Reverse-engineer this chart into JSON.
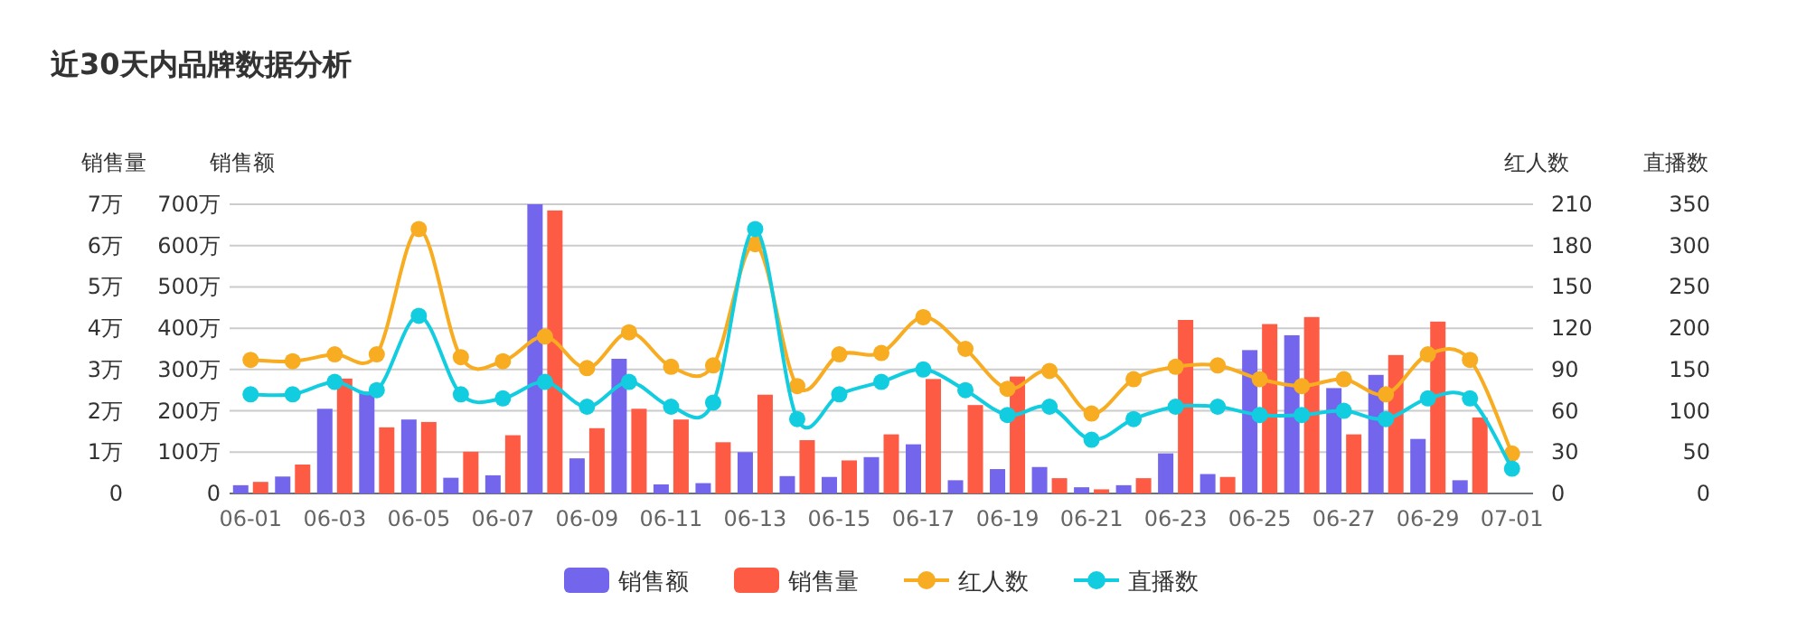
{
  "chart_data": [
    {
      "type": "bar",
      "title": "近30天内品牌数据分析",
      "categories": [
        "06-01",
        null,
        "06-03",
        null,
        "06-05",
        null,
        "06-07",
        null,
        "06-09",
        null,
        "06-11",
        null,
        "06-13",
        null,
        "06-15",
        null,
        "06-17",
        null,
        "06-19",
        null,
        "06-21",
        null,
        "06-23",
        null,
        "06-25",
        null,
        "06-27",
        null,
        "06-29",
        null,
        "07-01"
      ],
      "ylabel": "销售额",
      "y2label": "销售量",
      "ylim": [
        0,
        700
      ],
      "yticks": [
        0,
        {
          "value": 100,
          "label": "100万"
        },
        {
          "value": 200,
          "label": "200万"
        },
        {
          "value": 300,
          "label": "300万"
        },
        {
          "value": 400,
          "label": "400万"
        },
        {
          "value": 500,
          "label": "500万"
        },
        {
          "value": 600,
          "label": "600万"
        },
        {
          "value": 700,
          "label": "700万"
        }
      ],
      "y2lim": [
        0,
        7
      ],
      "y2ticks": [
        0,
        {
          "value": 1,
          "label": "1万"
        },
        {
          "value": 2,
          "label": "2万"
        },
        {
          "value": 3,
          "label": "3万"
        },
        {
          "value": 4,
          "label": "4万"
        },
        {
          "value": 5,
          "label": "5万"
        },
        {
          "value": 6,
          "label": "6万"
        },
        {
          "value": 7,
          "label": "7万"
        }
      ],
      "grid": "y",
      "legend": "bottom",
      "series": [
        {
          "name": "销售额",
          "color": "#7366ec",
          "values": [
            20,
            41,
            205,
            246,
            179,
            38,
            44,
            700,
            85,
            326,
            22,
            25,
            100,
            42,
            40,
            88,
            119,
            32,
            59,
            64,
            15,
            20,
            97,
            47,
            347,
            383,
            255,
            287,
            132,
            32,
            null
          ]
        },
        {
          "name": "销售量",
          "axis": "y2",
          "color": "#fe5b45",
          "values": [
            0.28,
            0.7,
            2.78,
            1.6,
            1.73,
            1.01,
            1.41,
            6.85,
            1.58,
            2.05,
            1.79,
            1.24,
            2.39,
            1.29,
            0.8,
            1.43,
            2.77,
            2.14,
            2.83,
            0.37,
            0.1,
            0.37,
            4.2,
            0.4,
            4.1,
            4.27,
            1.43,
            3.35,
            4.16,
            1.84,
            null
          ]
        }
      ]
    },
    {
      "type": "line",
      "categories": [
        null,
        null,
        null,
        null,
        null,
        null,
        null,
        null,
        null,
        null,
        null,
        null,
        null,
        null,
        null,
        null,
        null,
        null,
        null,
        null,
        null,
        null,
        null,
        null,
        null,
        null,
        null,
        null,
        null,
        null,
        null
      ],
      "ylabel": "红人数",
      "y2label": "直播数",
      "ylim": [
        0,
        210
      ],
      "yticks": [
        0,
        30,
        60,
        90,
        120,
        150,
        180,
        210
      ],
      "y2lim": [
        0,
        350
      ],
      "y2ticks": [
        0,
        50,
        100,
        150,
        200,
        250,
        300,
        350
      ],
      "tick_labels": "y",
      "legend": "bottom",
      "marker": "circle",
      "series": [
        {
          "name": "红人数",
          "color": "#f7ac21",
          "values": [
            97,
            96,
            101,
            101,
            192,
            99,
            96,
            114,
            91,
            117,
            92,
            93,
            181,
            78,
            101,
            102,
            128,
            105,
            76,
            89,
            58,
            83,
            92,
            93,
            83,
            78,
            83,
            72,
            101,
            97,
            29
          ]
        },
        {
          "name": "直播数",
          "axis": "y2",
          "color": "#12cde0",
          "values": [
            120,
            120,
            135,
            125,
            215,
            120,
            115,
            135,
            105,
            135,
            105,
            110,
            320,
            90,
            120,
            135,
            150,
            125,
            95,
            105,
            65,
            90,
            105,
            105,
            95,
            95,
            100,
            90,
            115,
            115,
            30
          ]
        }
      ]
    }
  ]
}
